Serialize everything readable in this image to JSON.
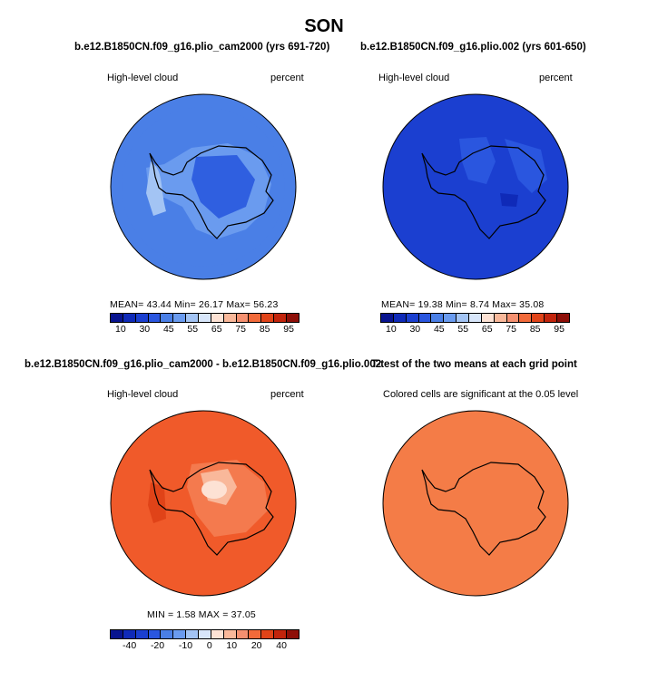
{
  "title": "SON",
  "panels": [
    {
      "title": "b.e12.B1850CN.f09_g16.plio_cam2000 (yrs 691-720)",
      "left_label": "High-level cloud",
      "right_label": "percent",
      "stats": "MEAN=   43.44   Min=   26.17   Max=   56.23",
      "fill": "#4a7fe6",
      "land": "#2f5fe0",
      "ring": "#6a9bef"
    },
    {
      "title": "b.e12.B1850CN.f09_g16.plio.002 (yrs 601-650)",
      "left_label": "High-level cloud",
      "right_label": "percent",
      "stats": "MEAN=   19.38   Min=    8.74   Max=   35.08",
      "fill": "#1b3fd0",
      "land": "#1f44d6",
      "ring": "#2a56df"
    },
    {
      "title": "b.e12.B1850CN.f09_g16.plio_cam2000 - b.e12.B1850CN.f09_g16.plio.002",
      "left_label": "High-level cloud",
      "right_label": "percent",
      "stats": "MIN =    1.58  MAX =   37.05",
      "fill": "#f05a2a",
      "land": "#f47a4e",
      "ring": "#f26a3a"
    },
    {
      "title": "T-test of the two means at each grid point",
      "left_label": "Colored cells are significant at the 0.05 level",
      "fill": "#f47c47"
    }
  ],
  "colorbar_abs": {
    "colors": [
      "#08148f",
      "#0f2ab8",
      "#1b3fd0",
      "#2a56df",
      "#4a7fe6",
      "#6a9bef",
      "#a3c4f4",
      "#d8e6fa",
      "#fde2d4",
      "#f9b89a",
      "#f59070",
      "#f26a3a",
      "#e04318",
      "#c2240c",
      "#8e0f08"
    ],
    "ticks": [
      "10",
      "30",
      "45",
      "55",
      "65",
      "75",
      "85",
      "95"
    ]
  },
  "colorbar_diff": {
    "colors": [
      "#08148f",
      "#0f2ab8",
      "#1b3fd0",
      "#2a56df",
      "#4a7fe6",
      "#6a9bef",
      "#a3c4f4",
      "#d8e6fa",
      "#fde2d4",
      "#f9b89a",
      "#f59070",
      "#f26a3a",
      "#e04318",
      "#c2240c",
      "#8e0f08"
    ],
    "ticks": [
      "-40",
      "-20",
      "-10",
      "0",
      "10",
      "20",
      "40"
    ]
  }
}
